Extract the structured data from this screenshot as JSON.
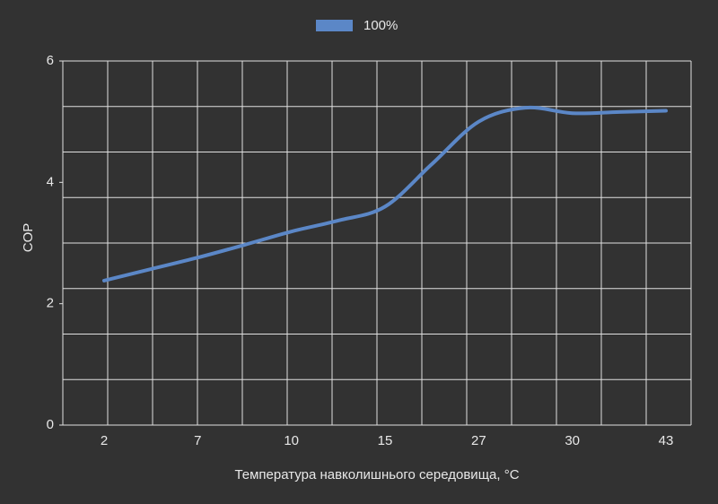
{
  "chart_data": {
    "type": "line",
    "x_label": "Температура навколишнього середовища, °C",
    "y_label": "COP",
    "categories": [
      "2",
      null,
      "7",
      null,
      "10",
      null,
      "15",
      null,
      "27",
      null,
      "30",
      null,
      "43"
    ],
    "series": [
      {
        "name": "100%",
        "color": "#5b87c7",
        "values": [
          2.38,
          2.57,
          2.76,
          2.97,
          3.19,
          3.37,
          3.6,
          4.3,
          5.0,
          5.23,
          5.14,
          5.16,
          5.18
        ]
      }
    ],
    "ylim": [
      0,
      6
    ],
    "yticks": [
      0,
      2,
      4,
      6
    ],
    "grid": true
  }
}
